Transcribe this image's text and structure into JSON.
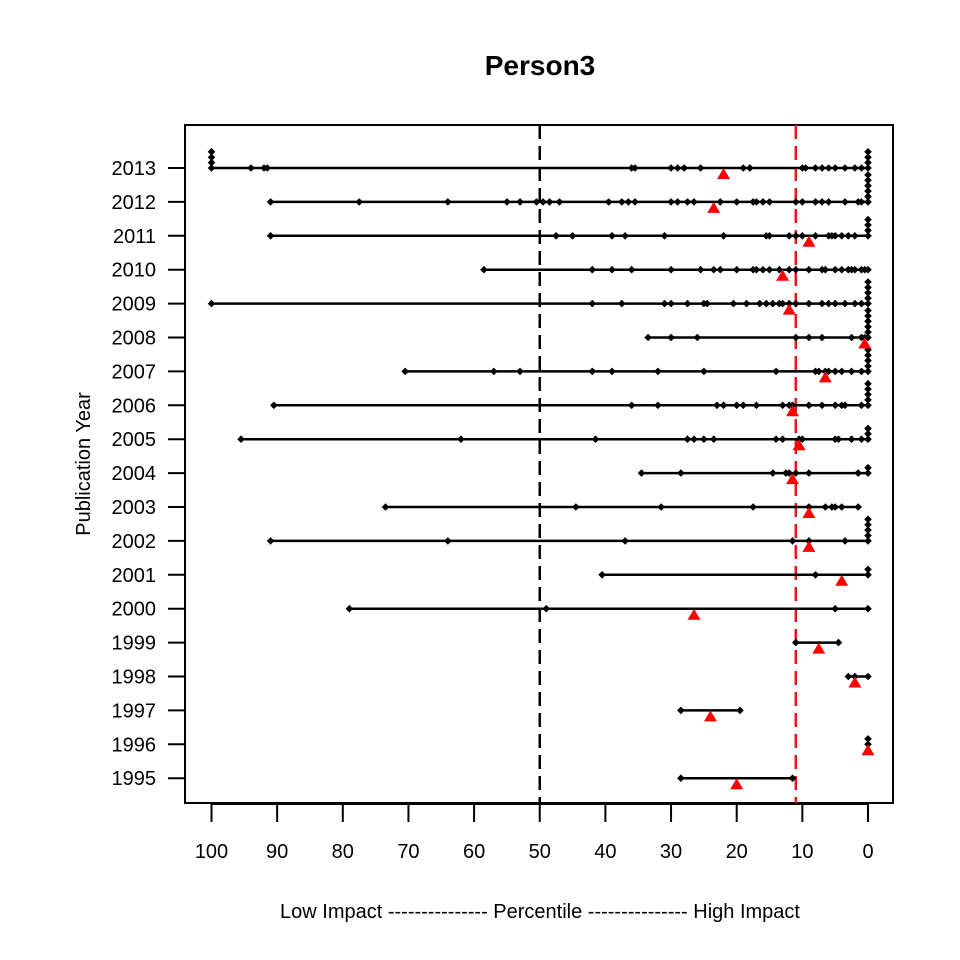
{
  "chart_data": {
    "type": "scatter",
    "title": "Person3",
    "ylabel": "Publication Year",
    "xlabel": "Low Impact --------------- Percentile --------------- High Impact",
    "xlim": [
      100,
      0
    ],
    "x_ticks": [
      100,
      90,
      80,
      70,
      60,
      50,
      40,
      30,
      20,
      10,
      0
    ],
    "y_ticks": [
      2013,
      2012,
      2011,
      2010,
      2009,
      2008,
      2007,
      2006,
      2005,
      2004,
      2003,
      2002,
      2001,
      2000,
      1999,
      1998,
      1997,
      1996,
      1995
    ],
    "reference_lines": [
      {
        "name": "median-50",
        "x": 50,
        "color": "#000000",
        "style": "dashed"
      },
      {
        "name": "top-10-threshold",
        "x": 11,
        "color": "#e31a1c",
        "style": "dashed"
      }
    ],
    "marker_color": "#000000",
    "mean_marker_color": "#ff0000",
    "series": [
      {
        "year": 2013,
        "values": [
          100,
          100,
          100,
          100,
          94,
          92,
          91.5,
          36,
          35.5,
          30,
          29,
          28,
          25.5,
          19,
          18,
          10,
          9.5,
          8,
          7,
          6,
          5,
          3.5,
          2,
          1,
          0,
          0,
          0,
          0
        ],
        "mean": 22
      },
      {
        "year": 2012,
        "values": [
          91,
          77.5,
          64,
          55,
          53,
          50.5,
          49.5,
          48.5,
          47,
          39.5,
          37.5,
          36.5,
          35.5,
          30,
          29,
          27.5,
          26.5,
          22.5,
          20,
          17.5,
          17,
          16,
          15,
          11,
          10,
          8,
          7,
          6,
          3.5,
          1.5,
          1,
          0,
          0,
          0,
          0,
          0,
          0
        ],
        "mean": 23.5
      },
      {
        "year": 2011,
        "values": [
          91,
          47.5,
          45,
          39,
          37,
          31,
          22,
          15.5,
          15,
          12,
          11,
          10,
          8,
          6,
          5.5,
          5,
          4,
          3,
          2,
          0,
          0,
          0,
          0
        ],
        "mean": 9
      },
      {
        "year": 2010,
        "values": [
          58.5,
          42,
          39,
          36,
          30,
          25.5,
          23.5,
          22.5,
          20,
          17.5,
          17,
          16,
          15,
          13.5,
          12,
          11,
          9,
          7,
          6.5,
          5,
          4,
          3,
          2.5,
          2,
          1,
          0.5,
          0
        ],
        "mean": 13
      },
      {
        "year": 2009,
        "values": [
          100,
          42,
          37.5,
          31,
          30,
          27.5,
          25,
          24.5,
          20.5,
          18.5,
          16.5,
          15.5,
          14.5,
          13.5,
          13,
          12,
          11,
          9,
          7,
          6,
          5,
          3.5,
          2,
          1,
          0,
          0,
          0,
          0,
          0
        ],
        "mean": 12
      },
      {
        "year": 2008,
        "values": [
          33.5,
          30,
          26,
          11,
          9,
          7,
          2.5,
          1,
          0.5,
          0,
          0,
          0,
          0,
          0,
          0
        ],
        "mean": 0.5
      },
      {
        "year": 2007,
        "values": [
          70.5,
          57,
          53,
          42,
          39,
          32,
          25,
          14,
          8,
          7.5,
          6.5,
          6,
          5,
          4,
          2.5,
          1,
          0,
          0,
          0,
          0,
          0
        ],
        "mean": 6.5
      },
      {
        "year": 2006,
        "values": [
          90.5,
          36,
          32,
          23,
          22,
          20,
          19,
          17,
          13,
          12,
          11.5,
          9,
          7,
          5,
          4,
          3.5,
          1,
          0,
          0,
          0,
          0,
          0
        ],
        "mean": 11.5
      },
      {
        "year": 2005,
        "values": [
          95.5,
          62,
          41.5,
          27.5,
          26.5,
          25,
          23.5,
          14,
          13,
          10.5,
          10,
          5,
          4.5,
          2.5,
          1,
          0,
          0,
          0
        ],
        "mean": 10.5
      },
      {
        "year": 2004,
        "values": [
          34.5,
          28.5,
          14.5,
          12.5,
          12,
          11,
          9,
          1.5,
          0,
          0
        ],
        "mean": 11.5
      },
      {
        "year": 2003,
        "values": [
          73.5,
          44.5,
          31.5,
          17.5,
          9,
          6.5,
          5.5,
          5,
          4,
          1.5
        ],
        "mean": 9
      },
      {
        "year": 2002,
        "values": [
          91,
          64,
          37,
          11.5,
          9,
          3.5,
          0,
          0,
          0,
          0,
          0
        ],
        "mean": 9
      },
      {
        "year": 2001,
        "values": [
          40.5,
          8,
          0,
          0
        ],
        "mean": 4
      },
      {
        "year": 2000,
        "values": [
          79,
          49,
          5,
          0
        ],
        "mean": 26.5
      },
      {
        "year": 1999,
        "values": [
          11,
          4.5
        ],
        "mean": 7.5
      },
      {
        "year": 1998,
        "values": [
          3,
          2,
          0
        ],
        "mean": 2
      },
      {
        "year": 1997,
        "values": [
          28.5,
          19.5
        ],
        "mean": 24
      },
      {
        "year": 1996,
        "values": [
          0,
          0
        ],
        "mean": 0
      },
      {
        "year": 1995,
        "values": [
          28.5,
          11.5
        ],
        "mean": 20
      }
    ]
  }
}
